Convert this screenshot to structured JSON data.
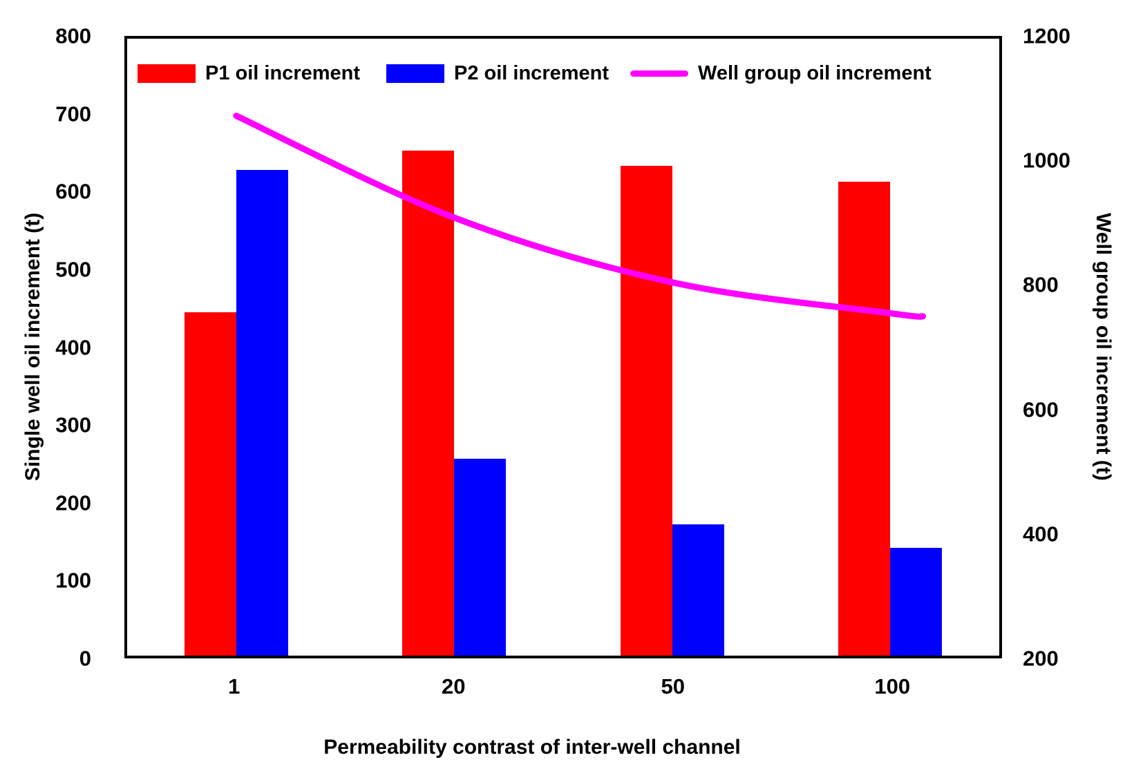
{
  "chart_data": {
    "type": "bar",
    "subtype": "grouped-bars-with-line-overlay",
    "categories": [
      "1",
      "20",
      "50",
      "100"
    ],
    "series": [
      {
        "name": "P1 oil increment",
        "kind": "bar",
        "color": "#ff0000",
        "axis": "left",
        "values": [
          445,
          655,
          635,
          615
        ]
      },
      {
        "name": "P2 oil increment",
        "kind": "bar",
        "color": "#0000ff",
        "axis": "left",
        "values": [
          630,
          255,
          170,
          140
        ]
      },
      {
        "name": "Well group oil increment",
        "kind": "line",
        "color": "#ff00ff",
        "axis": "right",
        "values": [
          1075,
          910,
          805,
          755
        ],
        "extension": {
          "x_offset_slots": 0.15,
          "value": 750
        }
      }
    ],
    "left_axis": {
      "label": "Single well oil increment (t)",
      "min": 0,
      "max": 800,
      "tick_step": 100,
      "ticks": [
        0,
        100,
        200,
        300,
        400,
        500,
        600,
        700,
        800
      ]
    },
    "right_axis": {
      "label": "Well group oil increment (t)",
      "min": 200,
      "max": 1200,
      "tick_step": 200,
      "ticks": [
        200,
        400,
        600,
        800,
        1000,
        1200
      ]
    },
    "x_axis": {
      "label": "Permeability  contrast of inter-well channel"
    },
    "legend_position": "top-inside",
    "grid": false,
    "plot_border_color": "#000000"
  }
}
